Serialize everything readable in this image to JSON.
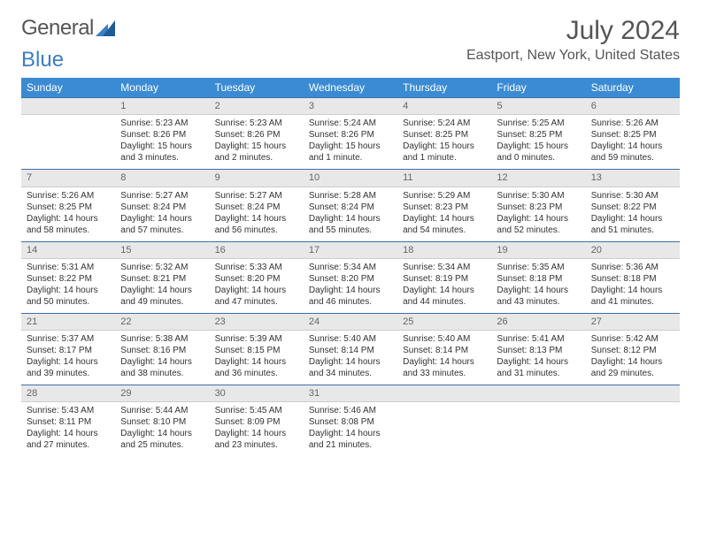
{
  "brand": {
    "part1": "General",
    "part2": "Blue"
  },
  "title": "July 2024",
  "location": "Eastport, New York, United States",
  "colors": {
    "header_bg": "#3b8bd4",
    "header_text": "#ffffff",
    "daynum_bg": "#e8e8e8",
    "daynum_text": "#666666",
    "border_top": "#3b6fa8",
    "body_text": "#333333",
    "logo_gray": "#555555",
    "logo_blue": "#3b7fc4"
  },
  "weekdays": [
    "Sunday",
    "Monday",
    "Tuesday",
    "Wednesday",
    "Thursday",
    "Friday",
    "Saturday"
  ],
  "weeks": [
    {
      "nums": [
        "",
        "1",
        "2",
        "3",
        "4",
        "5",
        "6"
      ],
      "cells": [
        null,
        {
          "sunrise": "Sunrise: 5:23 AM",
          "sunset": "Sunset: 8:26 PM",
          "d1": "Daylight: 15 hours",
          "d2": "and 3 minutes."
        },
        {
          "sunrise": "Sunrise: 5:23 AM",
          "sunset": "Sunset: 8:26 PM",
          "d1": "Daylight: 15 hours",
          "d2": "and 2 minutes."
        },
        {
          "sunrise": "Sunrise: 5:24 AM",
          "sunset": "Sunset: 8:26 PM",
          "d1": "Daylight: 15 hours",
          "d2": "and 1 minute."
        },
        {
          "sunrise": "Sunrise: 5:24 AM",
          "sunset": "Sunset: 8:25 PM",
          "d1": "Daylight: 15 hours",
          "d2": "and 1 minute."
        },
        {
          "sunrise": "Sunrise: 5:25 AM",
          "sunset": "Sunset: 8:25 PM",
          "d1": "Daylight: 15 hours",
          "d2": "and 0 minutes."
        },
        {
          "sunrise": "Sunrise: 5:26 AM",
          "sunset": "Sunset: 8:25 PM",
          "d1": "Daylight: 14 hours",
          "d2": "and 59 minutes."
        }
      ]
    },
    {
      "nums": [
        "7",
        "8",
        "9",
        "10",
        "11",
        "12",
        "13"
      ],
      "cells": [
        {
          "sunrise": "Sunrise: 5:26 AM",
          "sunset": "Sunset: 8:25 PM",
          "d1": "Daylight: 14 hours",
          "d2": "and 58 minutes."
        },
        {
          "sunrise": "Sunrise: 5:27 AM",
          "sunset": "Sunset: 8:24 PM",
          "d1": "Daylight: 14 hours",
          "d2": "and 57 minutes."
        },
        {
          "sunrise": "Sunrise: 5:27 AM",
          "sunset": "Sunset: 8:24 PM",
          "d1": "Daylight: 14 hours",
          "d2": "and 56 minutes."
        },
        {
          "sunrise": "Sunrise: 5:28 AM",
          "sunset": "Sunset: 8:24 PM",
          "d1": "Daylight: 14 hours",
          "d2": "and 55 minutes."
        },
        {
          "sunrise": "Sunrise: 5:29 AM",
          "sunset": "Sunset: 8:23 PM",
          "d1": "Daylight: 14 hours",
          "d2": "and 54 minutes."
        },
        {
          "sunrise": "Sunrise: 5:30 AM",
          "sunset": "Sunset: 8:23 PM",
          "d1": "Daylight: 14 hours",
          "d2": "and 52 minutes."
        },
        {
          "sunrise": "Sunrise: 5:30 AM",
          "sunset": "Sunset: 8:22 PM",
          "d1": "Daylight: 14 hours",
          "d2": "and 51 minutes."
        }
      ]
    },
    {
      "nums": [
        "14",
        "15",
        "16",
        "17",
        "18",
        "19",
        "20"
      ],
      "cells": [
        {
          "sunrise": "Sunrise: 5:31 AM",
          "sunset": "Sunset: 8:22 PM",
          "d1": "Daylight: 14 hours",
          "d2": "and 50 minutes."
        },
        {
          "sunrise": "Sunrise: 5:32 AM",
          "sunset": "Sunset: 8:21 PM",
          "d1": "Daylight: 14 hours",
          "d2": "and 49 minutes."
        },
        {
          "sunrise": "Sunrise: 5:33 AM",
          "sunset": "Sunset: 8:20 PM",
          "d1": "Daylight: 14 hours",
          "d2": "and 47 minutes."
        },
        {
          "sunrise": "Sunrise: 5:34 AM",
          "sunset": "Sunset: 8:20 PM",
          "d1": "Daylight: 14 hours",
          "d2": "and 46 minutes."
        },
        {
          "sunrise": "Sunrise: 5:34 AM",
          "sunset": "Sunset: 8:19 PM",
          "d1": "Daylight: 14 hours",
          "d2": "and 44 minutes."
        },
        {
          "sunrise": "Sunrise: 5:35 AM",
          "sunset": "Sunset: 8:18 PM",
          "d1": "Daylight: 14 hours",
          "d2": "and 43 minutes."
        },
        {
          "sunrise": "Sunrise: 5:36 AM",
          "sunset": "Sunset: 8:18 PM",
          "d1": "Daylight: 14 hours",
          "d2": "and 41 minutes."
        }
      ]
    },
    {
      "nums": [
        "21",
        "22",
        "23",
        "24",
        "25",
        "26",
        "27"
      ],
      "cells": [
        {
          "sunrise": "Sunrise: 5:37 AM",
          "sunset": "Sunset: 8:17 PM",
          "d1": "Daylight: 14 hours",
          "d2": "and 39 minutes."
        },
        {
          "sunrise": "Sunrise: 5:38 AM",
          "sunset": "Sunset: 8:16 PM",
          "d1": "Daylight: 14 hours",
          "d2": "and 38 minutes."
        },
        {
          "sunrise": "Sunrise: 5:39 AM",
          "sunset": "Sunset: 8:15 PM",
          "d1": "Daylight: 14 hours",
          "d2": "and 36 minutes."
        },
        {
          "sunrise": "Sunrise: 5:40 AM",
          "sunset": "Sunset: 8:14 PM",
          "d1": "Daylight: 14 hours",
          "d2": "and 34 minutes."
        },
        {
          "sunrise": "Sunrise: 5:40 AM",
          "sunset": "Sunset: 8:14 PM",
          "d1": "Daylight: 14 hours",
          "d2": "and 33 minutes."
        },
        {
          "sunrise": "Sunrise: 5:41 AM",
          "sunset": "Sunset: 8:13 PM",
          "d1": "Daylight: 14 hours",
          "d2": "and 31 minutes."
        },
        {
          "sunrise": "Sunrise: 5:42 AM",
          "sunset": "Sunset: 8:12 PM",
          "d1": "Daylight: 14 hours",
          "d2": "and 29 minutes."
        }
      ]
    },
    {
      "nums": [
        "28",
        "29",
        "30",
        "31",
        "",
        "",
        ""
      ],
      "cells": [
        {
          "sunrise": "Sunrise: 5:43 AM",
          "sunset": "Sunset: 8:11 PM",
          "d1": "Daylight: 14 hours",
          "d2": "and 27 minutes."
        },
        {
          "sunrise": "Sunrise: 5:44 AM",
          "sunset": "Sunset: 8:10 PM",
          "d1": "Daylight: 14 hours",
          "d2": "and 25 minutes."
        },
        {
          "sunrise": "Sunrise: 5:45 AM",
          "sunset": "Sunset: 8:09 PM",
          "d1": "Daylight: 14 hours",
          "d2": "and 23 minutes."
        },
        {
          "sunrise": "Sunrise: 5:46 AM",
          "sunset": "Sunset: 8:08 PM",
          "d1": "Daylight: 14 hours",
          "d2": "and 21 minutes."
        },
        null,
        null,
        null
      ]
    }
  ]
}
